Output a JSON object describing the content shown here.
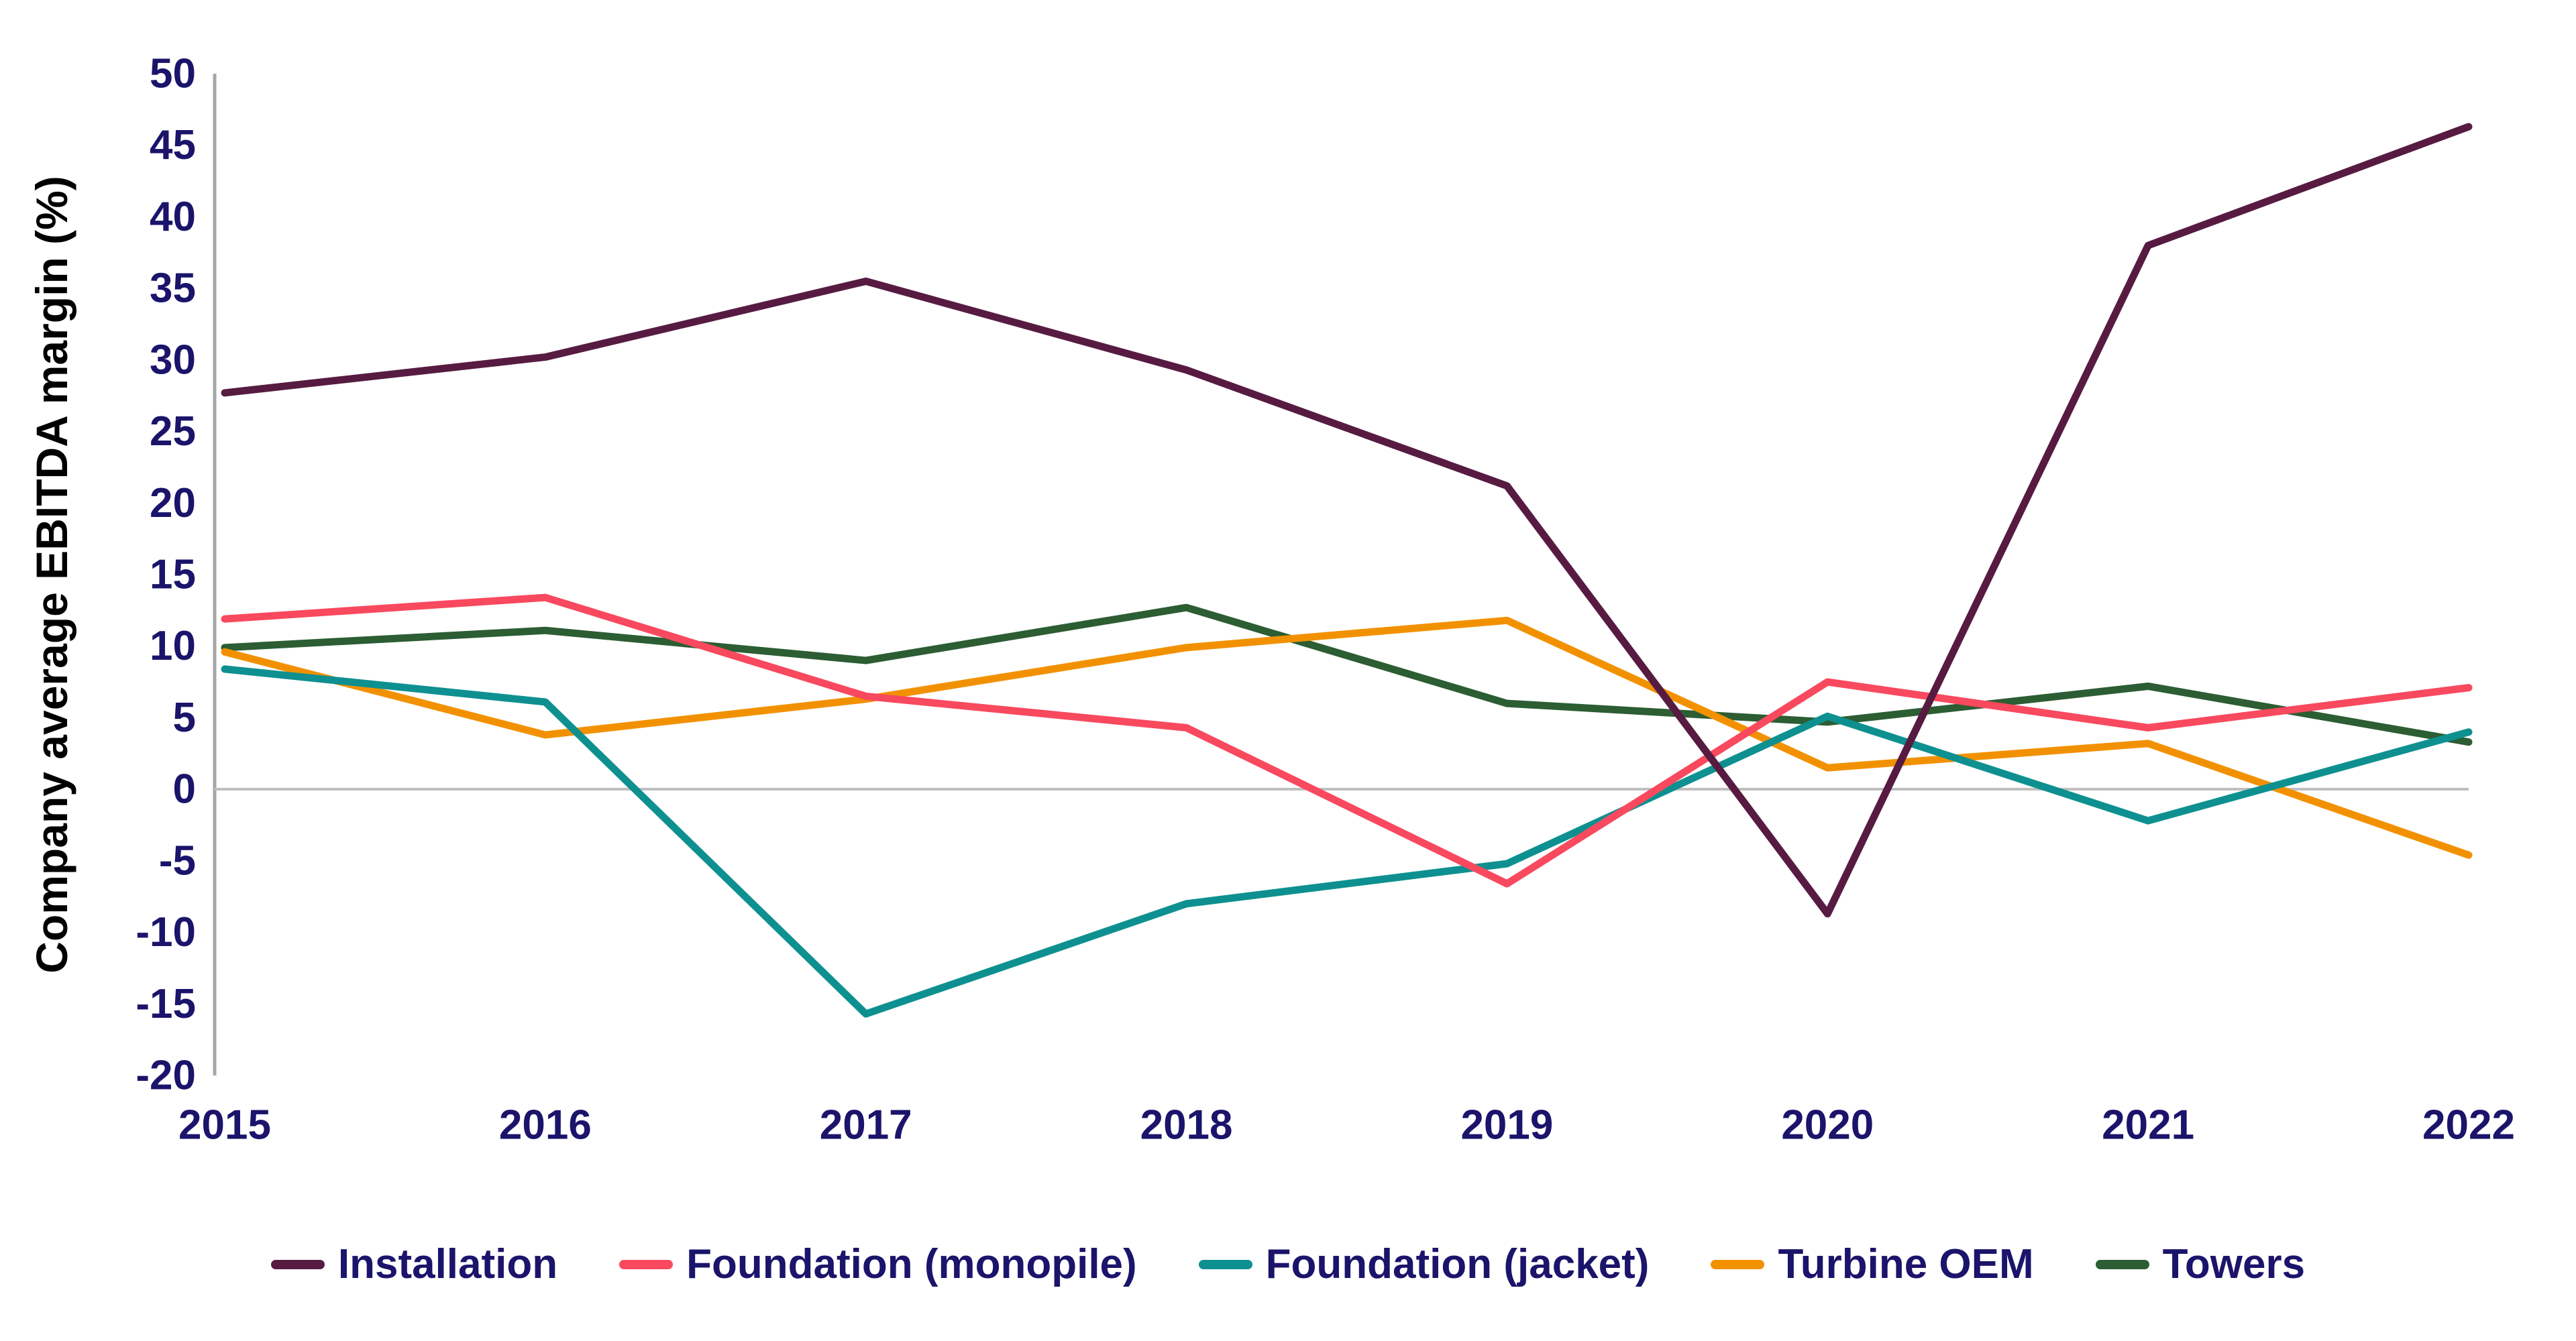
{
  "colors": {
    "background": "#ffffff",
    "axis_text": "#1B146B",
    "axis_line": "#A6A6A6",
    "zero_line": "#BFBFBF",
    "installation": "#571B42",
    "foundation_monopile": "#F9495E",
    "foundation_jacket": "#0E9090",
    "turbine_oem": "#F29100",
    "towers": "#2C5D33"
  },
  "chart_data": {
    "type": "line",
    "title": "",
    "xlabel": "",
    "ylabel": "Company average EBITDA margin (%)",
    "x": [
      "2015",
      "2016",
      "2017",
      "2018",
      "2019",
      "2020",
      "2021",
      "2022"
    ],
    "ylim": [
      -20,
      50
    ],
    "ytick_step": 5,
    "grid": "zero-line-only",
    "legend_position": "bottom",
    "series": [
      {
        "name": "Installation",
        "color": "#571B42",
        "values": [
          27.7,
          30.2,
          35.5,
          29.3,
          21.2,
          -8.7,
          38.0,
          46.3
        ]
      },
      {
        "name": "Foundation (monopile)",
        "color": "#F9495E",
        "values": [
          11.9,
          13.4,
          6.5,
          4.3,
          -6.6,
          7.5,
          4.3,
          7.1
        ]
      },
      {
        "name": "Foundation (jacket)",
        "color": "#0E9090",
        "values": [
          8.4,
          6.1,
          -15.7,
          -8.0,
          -5.2,
          5.1,
          -2.2,
          4.0
        ]
      },
      {
        "name": "Turbine OEM",
        "color": "#F29100",
        "values": [
          9.6,
          3.8,
          6.3,
          9.9,
          11.8,
          1.5,
          3.2,
          -4.6
        ]
      },
      {
        "name": "Towers",
        "color": "#2C5D33",
        "values": [
          9.9,
          11.1,
          9.0,
          12.7,
          6.0,
          4.7,
          7.2,
          3.3
        ]
      }
    ]
  },
  "layout_note": "y-axis ticks every 5 from -20 to 50; single horizontal gridline at 0"
}
